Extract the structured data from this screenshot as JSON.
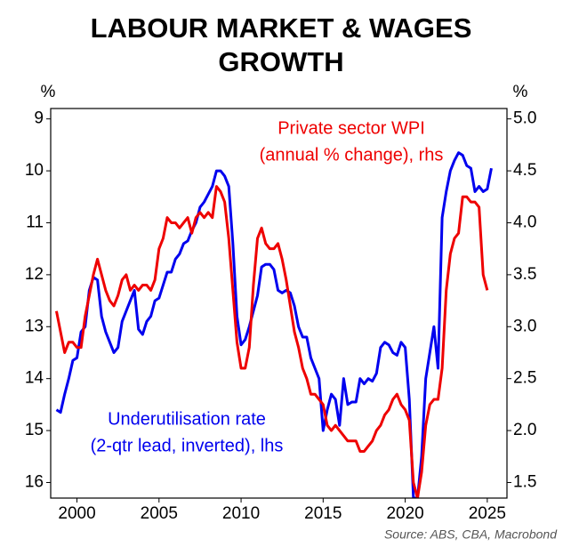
{
  "chart_data": {
    "type": "line",
    "title": [
      "LABOUR MARKET & WAGES",
      "GROWTH"
    ],
    "y_label": "%",
    "y2_label": "%",
    "source": "Source: ABS, CBA, Macrobond",
    "xlim": [
      1998.4,
      2026.2
    ],
    "xticks": [
      2000,
      2005,
      2010,
      2015,
      2020,
      2025
    ],
    "ylim": [
      8.8,
      16.3
    ],
    "y_inverted": true,
    "yticks": [
      9,
      10,
      11,
      12,
      13,
      14,
      15,
      16
    ],
    "y2lim": [
      1.35,
      5.1
    ],
    "y2ticks": [
      1.5,
      {
        "value": 2,
        "label": "2.0"
      },
      2.5,
      {
        "value": 3,
        "label": "3.0"
      },
      3.5,
      {
        "value": 4,
        "label": "4.0"
      },
      4.5,
      {
        "value": 5,
        "label": "5.0"
      }
    ],
    "grid": false,
    "series": [
      {
        "name": [
          "Underutilisation rate",
          "(2-qtr lead, inverted), lhs"
        ],
        "color": "#0000ee",
        "axis": "y",
        "x": [
          1998.75,
          1999,
          1999.25,
          1999.5,
          1999.75,
          2000,
          2000.25,
          2000.5,
          2000.75,
          2001,
          2001.25,
          2001.5,
          2001.75,
          2002,
          2002.25,
          2002.5,
          2002.75,
          2003,
          2003.25,
          2003.5,
          2003.75,
          2004,
          2004.25,
          2004.5,
          2004.75,
          2005,
          2005.25,
          2005.5,
          2005.75,
          2006,
          2006.25,
          2006.5,
          2006.75,
          2007,
          2007.25,
          2007.5,
          2007.75,
          2008,
          2008.25,
          2008.5,
          2008.75,
          2009,
          2009.25,
          2009.5,
          2009.75,
          2010,
          2010.25,
          2010.5,
          2010.75,
          2011,
          2011.25,
          2011.5,
          2011.75,
          2012,
          2012.25,
          2012.5,
          2012.75,
          2013,
          2013.25,
          2013.5,
          2013.75,
          2014,
          2014.25,
          2014.5,
          2014.75,
          2015,
          2015.25,
          2015.5,
          2015.75,
          2016,
          2016.25,
          2016.5,
          2016.75,
          2017,
          2017.25,
          2017.5,
          2017.75,
          2018,
          2018.25,
          2018.5,
          2018.75,
          2019,
          2019.25,
          2019.5,
          2019.75,
          2020,
          2020.25,
          2020.5,
          2020.75,
          2021,
          2021.25,
          2021.5,
          2021.75,
          2022,
          2022.25,
          2022.5,
          2022.75,
          2023,
          2023.25,
          2023.5,
          2023.75,
          2024,
          2024.25,
          2024.5,
          2024.75,
          2025,
          2025.25
        ],
        "values": [
          14.6,
          14.65,
          14.3,
          14.0,
          13.65,
          13.6,
          13.1,
          13.0,
          12.3,
          12.05,
          12.1,
          12.8,
          13.1,
          13.3,
          13.5,
          13.4,
          12.9,
          12.7,
          12.5,
          12.3,
          13.05,
          13.15,
          12.9,
          12.8,
          12.5,
          12.45,
          12.2,
          11.95,
          11.95,
          11.7,
          11.6,
          11.4,
          11.35,
          11.15,
          11.0,
          10.7,
          10.6,
          10.45,
          10.3,
          10.0,
          10.0,
          10.1,
          10.3,
          11.4,
          12.8,
          13.35,
          13.25,
          13.0,
          12.7,
          12.4,
          11.85,
          11.8,
          11.8,
          11.9,
          12.3,
          12.35,
          12.3,
          12.35,
          12.6,
          13.0,
          13.2,
          13.2,
          13.6,
          13.8,
          14.0,
          15.0,
          14.6,
          14.3,
          14.4,
          14.9,
          14.0,
          14.5,
          14.45,
          14.45,
          14.0,
          14.1,
          14.0,
          14.05,
          13.9,
          13.4,
          13.3,
          13.35,
          13.5,
          13.55,
          13.3,
          13.4,
          14.4,
          16.3,
          16.3,
          15.5,
          14.0,
          13.5,
          13.0,
          13.8,
          10.9,
          10.4,
          10.0,
          9.8,
          9.65,
          9.7,
          9.9,
          9.95,
          10.4,
          10.3,
          10.4,
          10.35,
          9.95
        ]
      },
      {
        "name": [
          "Private sector WPI",
          "(annual % change), rhs"
        ],
        "color": "#ee0000",
        "axis": "y2",
        "x": [
          1998.75,
          1999,
          1999.25,
          1999.5,
          1999.75,
          2000,
          2000.25,
          2000.5,
          2000.75,
          2001,
          2001.25,
          2001.5,
          2001.75,
          2002,
          2002.25,
          2002.5,
          2002.75,
          2003,
          2003.25,
          2003.5,
          2003.75,
          2004,
          2004.25,
          2004.5,
          2004.75,
          2005,
          2005.25,
          2005.5,
          2005.75,
          2006,
          2006.25,
          2006.5,
          2006.75,
          2007,
          2007.25,
          2007.5,
          2007.75,
          2008,
          2008.25,
          2008.5,
          2008.75,
          2009,
          2009.25,
          2009.5,
          2009.75,
          2010,
          2010.25,
          2010.5,
          2010.75,
          2011,
          2011.25,
          2011.5,
          2011.75,
          2012,
          2012.25,
          2012.5,
          2012.75,
          2013,
          2013.25,
          2013.5,
          2013.75,
          2014,
          2014.25,
          2014.5,
          2014.75,
          2015,
          2015.25,
          2015.5,
          2015.75,
          2016,
          2016.25,
          2016.5,
          2016.75,
          2017,
          2017.25,
          2017.5,
          2017.75,
          2018,
          2018.25,
          2018.5,
          2018.75,
          2019,
          2019.25,
          2019.5,
          2019.75,
          2020,
          2020.25,
          2020.5,
          2020.75,
          2021,
          2021.25,
          2021.5,
          2021.75,
          2022,
          2022.25,
          2022.5,
          2022.75,
          2023,
          2023.25,
          2023.5,
          2023.75,
          2024,
          2024.25,
          2024.5,
          2024.75,
          2025
        ],
        "values": [
          3.15,
          2.95,
          2.75,
          2.85,
          2.85,
          2.8,
          2.8,
          3.1,
          3.3,
          3.5,
          3.65,
          3.5,
          3.35,
          3.25,
          3.2,
          3.3,
          3.45,
          3.5,
          3.35,
          3.4,
          3.35,
          3.4,
          3.4,
          3.35,
          3.45,
          3.75,
          3.85,
          4.05,
          4.0,
          4.0,
          3.95,
          4.0,
          4.05,
          3.9,
          4.05,
          4.1,
          4.05,
          4.1,
          4.05,
          4.35,
          4.3,
          4.2,
          3.85,
          3.35,
          2.85,
          2.6,
          2.6,
          2.8,
          3.4,
          3.85,
          3.95,
          3.8,
          3.75,
          3.75,
          3.8,
          3.65,
          3.45,
          3.2,
          2.95,
          2.8,
          2.6,
          2.5,
          2.35,
          2.35,
          2.3,
          2.25,
          2.05,
          2.0,
          2.05,
          2.0,
          1.95,
          1.9,
          1.9,
          1.9,
          1.8,
          1.8,
          1.85,
          1.9,
          2.0,
          2.05,
          2.15,
          2.2,
          2.3,
          2.35,
          2.25,
          2.2,
          2.1,
          1.5,
          1.35,
          1.6,
          2.05,
          2.25,
          2.3,
          2.3,
          2.6,
          3.35,
          3.7,
          3.85,
          3.9,
          4.25,
          4.25,
          4.2,
          4.2,
          4.15,
          3.5,
          3.35
        ]
      }
    ]
  }
}
